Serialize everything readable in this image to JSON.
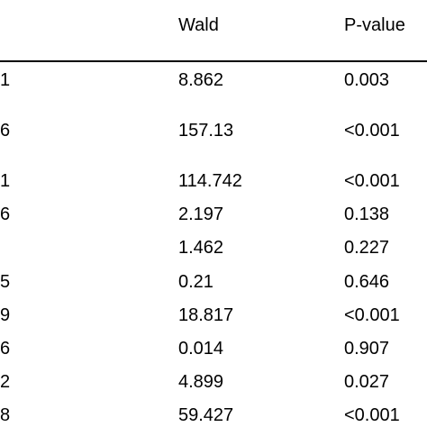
{
  "table": {
    "headers": {
      "wald": "Wald",
      "p_value": "P-value"
    },
    "rows": [
      {
        "left": "1",
        "wald": "8.862",
        "p": "0.003"
      },
      {
        "left": "6",
        "wald": "157.13",
        "p": "<0.001"
      },
      {
        "left": "1",
        "wald": "114.742",
        "p": "<0.001"
      },
      {
        "left": "6",
        "wald": "2.197",
        "p": "0.138"
      },
      {
        "left": "",
        "wald": "1.462",
        "p": "0.227"
      },
      {
        "left": "5",
        "wald": "0.21",
        "p": "0.646"
      },
      {
        "left": "9",
        "wald": "18.817",
        "p": "<0.001"
      },
      {
        "left": "6",
        "wald": "0.014",
        "p": "0.907"
      },
      {
        "left": "2",
        "wald": "4.899",
        "p": "0.027"
      },
      {
        "left": "8",
        "wald": "59.427",
        "p": "<0.001"
      }
    ]
  }
}
